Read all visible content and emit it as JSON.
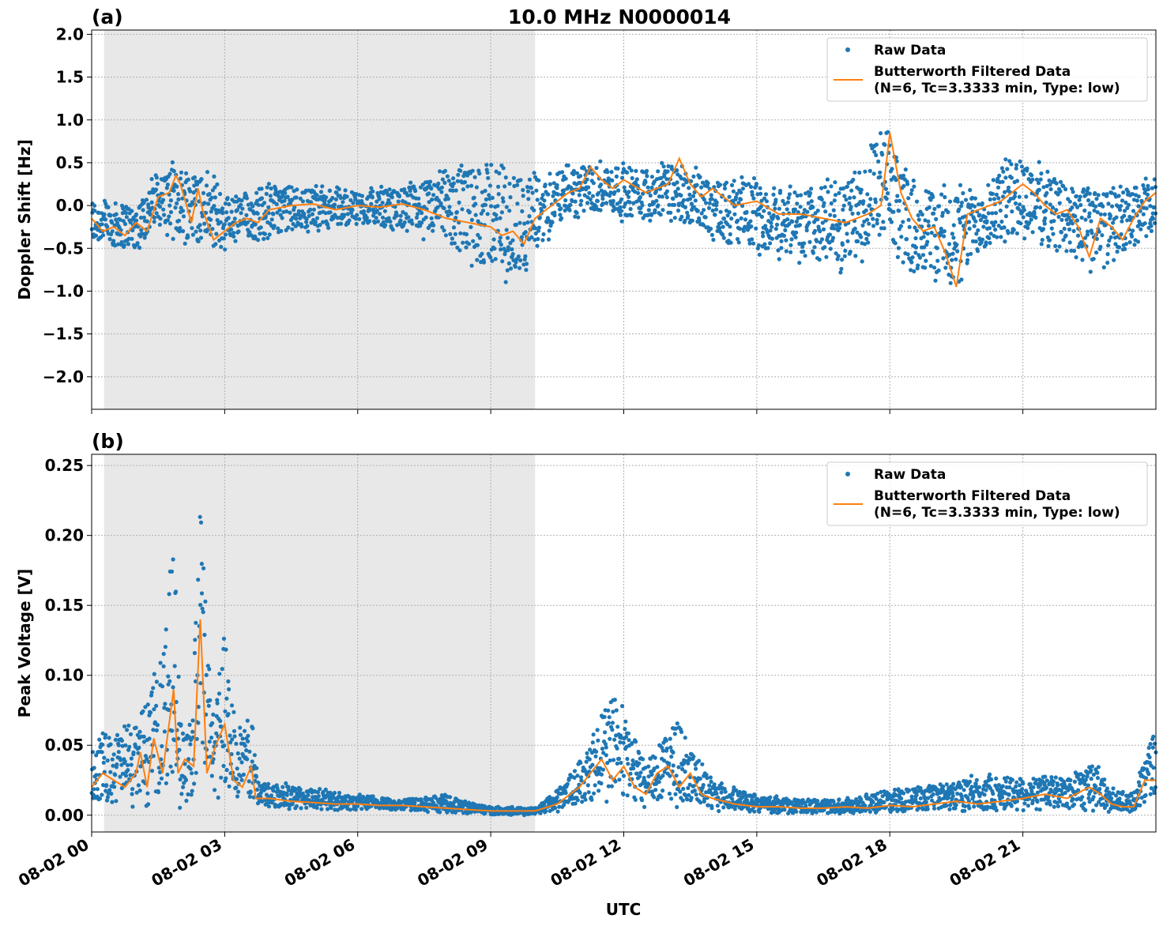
{
  "figure": {
    "title": "10.0 MHz N0000014",
    "xlabel": "UTC",
    "colors": {
      "raw": "#1f77b4",
      "filtered": "#ff7f0e",
      "shade": "#e8e8e8",
      "grid": "#b0b0b0"
    }
  },
  "legend": {
    "raw_label": "Raw Data",
    "filtered_label_line1": "Butterworth Filtered Data",
    "filtered_label_line2": "(N=6, Tc=3.3333 min, Type: low)",
    "placement": "upper right"
  },
  "chart_data": [
    {
      "type": "scatter",
      "panel_label": "(a)",
      "ylabel": "Doppler Shift [Hz]",
      "xlim_hours": [
        0,
        24
      ],
      "ylim": [
        -2.38,
        2.05
      ],
      "yticks": [
        2.0,
        1.5,
        1.0,
        0.5,
        0.0,
        -0.5,
        -1.0,
        -1.5,
        -2.0
      ],
      "ytick_labels": [
        "2.0",
        "1.5",
        "1.0",
        "0.5",
        "0.0",
        "−0.5",
        "−1.0",
        "−1.5",
        "−2.0"
      ],
      "shaded_region_hours": [
        0.28,
        10.0
      ],
      "grid": true,
      "filtered_series": {
        "name": "Butterworth Filtered Data",
        "x_hours": [
          0.0,
          0.25,
          0.5,
          0.75,
          1.0,
          1.25,
          1.5,
          1.75,
          1.9,
          2.0,
          2.25,
          2.4,
          2.5,
          2.75,
          3.0,
          3.25,
          3.5,
          3.75,
          4.0,
          4.5,
          5.0,
          5.5,
          6.0,
          6.5,
          7.0,
          7.5,
          8.0,
          8.5,
          9.0,
          9.25,
          9.5,
          9.75,
          10.0,
          10.25,
          10.5,
          10.75,
          11.0,
          11.25,
          11.5,
          11.75,
          12.0,
          12.5,
          13.0,
          13.25,
          13.5,
          13.75,
          14.0,
          14.5,
          15.0,
          15.5,
          16.0,
          16.5,
          17.0,
          17.5,
          17.8,
          17.9,
          18.0,
          18.25,
          18.5,
          18.75,
          19.0,
          19.25,
          19.5,
          19.75,
          20.0,
          20.5,
          21.0,
          21.25,
          21.5,
          21.75,
          22.0,
          22.25,
          22.5,
          22.75,
          23.0,
          23.25,
          23.5,
          23.75,
          24.0
        ],
        "values": [
          -0.15,
          -0.3,
          -0.25,
          -0.35,
          -0.2,
          -0.3,
          0.1,
          0.15,
          0.35,
          0.25,
          -0.2,
          0.2,
          -0.05,
          -0.4,
          -0.3,
          -0.2,
          -0.15,
          -0.2,
          -0.05,
          0.0,
          0.02,
          -0.05,
          0.0,
          -0.02,
          0.02,
          -0.05,
          -0.15,
          -0.2,
          -0.25,
          -0.35,
          -0.3,
          -0.45,
          -0.15,
          -0.05,
          0.05,
          0.15,
          0.2,
          0.45,
          0.3,
          0.2,
          0.3,
          0.15,
          0.25,
          0.55,
          0.25,
          0.1,
          0.2,
          0.0,
          0.05,
          -0.1,
          -0.1,
          -0.15,
          -0.2,
          -0.1,
          0.0,
          0.4,
          0.85,
          0.15,
          -0.15,
          -0.3,
          -0.25,
          -0.55,
          -0.95,
          -0.1,
          -0.05,
          0.05,
          0.25,
          0.15,
          0.0,
          -0.1,
          -0.05,
          -0.25,
          -0.6,
          -0.15,
          -0.25,
          -0.4,
          -0.15,
          0.05,
          0.15
        ]
      },
      "raw_envelope": {
        "name": "Raw Data",
        "x_hours": [
          0.0,
          1.0,
          1.5,
          2.0,
          2.5,
          3.0,
          3.5,
          4.0,
          5.0,
          6.0,
          7.0,
          8.0,
          8.5,
          9.0,
          9.5,
          10.0,
          10.5,
          11.0,
          11.5,
          12.0,
          13.0,
          14.0,
          15.0,
          16.0,
          17.0,
          17.9,
          18.5,
          19.0,
          19.5,
          20.0,
          20.5,
          21.0,
          21.5,
          22.0,
          22.5,
          23.0,
          23.5,
          24.0
        ],
        "upper": [
          0.15,
          0.05,
          0.45,
          0.55,
          0.5,
          0.2,
          0.2,
          0.3,
          0.25,
          0.2,
          0.25,
          0.45,
          0.55,
          0.65,
          0.5,
          0.45,
          0.45,
          0.5,
          0.55,
          0.5,
          0.55,
          0.4,
          0.35,
          0.3,
          0.35,
          0.95,
          0.35,
          0.3,
          0.3,
          0.3,
          0.55,
          0.65,
          0.5,
          0.35,
          0.3,
          0.25,
          0.3,
          0.35
        ],
        "lower": [
          -0.5,
          -0.55,
          -0.3,
          -0.45,
          -0.55,
          -0.6,
          -0.45,
          -0.4,
          -0.3,
          -0.25,
          -0.3,
          -0.5,
          -0.75,
          -0.85,
          -1.0,
          -0.7,
          -0.25,
          -0.15,
          -0.1,
          -0.2,
          -0.2,
          -0.4,
          -0.6,
          -0.7,
          -0.8,
          -0.5,
          -0.8,
          -0.9,
          -1.1,
          -0.6,
          -0.5,
          -0.4,
          -0.5,
          -0.65,
          -0.8,
          -0.7,
          -0.55,
          -0.4
        ]
      }
    },
    {
      "type": "scatter",
      "panel_label": "(b)",
      "ylabel": "Peak Voltage [V]",
      "xlim_hours": [
        0,
        24
      ],
      "ylim": [
        -0.012,
        0.258
      ],
      "yticks": [
        0.25,
        0.2,
        0.15,
        0.1,
        0.05,
        0.0
      ],
      "ytick_labels": [
        "0.25",
        "0.20",
        "0.15",
        "0.10",
        "0.05",
        "0.00"
      ],
      "xticks_hours": [
        0,
        3,
        6,
        9,
        12,
        15,
        18,
        21
      ],
      "xtick_labels": [
        "08-02 00",
        "08-02 03",
        "08-02 06",
        "08-02 09",
        "08-02 12",
        "08-02 15",
        "08-02 18",
        "08-02 21"
      ],
      "shaded_region_hours": [
        0.28,
        10.0
      ],
      "grid": true,
      "filtered_series": {
        "name": "Butterworth Filtered Data",
        "x_hours": [
          0.0,
          0.25,
          0.5,
          0.75,
          1.0,
          1.1,
          1.25,
          1.4,
          1.6,
          1.85,
          1.95,
          2.1,
          2.3,
          2.45,
          2.6,
          2.8,
          3.0,
          3.2,
          3.4,
          3.6,
          3.7,
          4.0,
          4.5,
          5.0,
          5.5,
          6.0,
          6.5,
          7.0,
          7.5,
          8.0,
          8.5,
          9.0,
          9.5,
          10.0,
          10.5,
          11.0,
          11.25,
          11.5,
          11.75,
          12.0,
          12.25,
          12.5,
          12.75,
          13.0,
          13.25,
          13.5,
          13.75,
          14.0,
          14.5,
          15.0,
          15.5,
          16.0,
          16.5,
          17.0,
          17.5,
          18.0,
          18.5,
          19.0,
          19.5,
          20.0,
          20.5,
          21.0,
          21.5,
          22.0,
          22.5,
          22.75,
          23.0,
          23.25,
          23.5,
          23.75,
          24.0
        ],
        "values": [
          0.02,
          0.03,
          0.025,
          0.02,
          0.03,
          0.045,
          0.02,
          0.055,
          0.03,
          0.09,
          0.03,
          0.04,
          0.035,
          0.14,
          0.03,
          0.05,
          0.065,
          0.025,
          0.02,
          0.035,
          0.012,
          0.012,
          0.01,
          0.009,
          0.008,
          0.008,
          0.007,
          0.007,
          0.006,
          0.005,
          0.004,
          0.003,
          0.003,
          0.003,
          0.008,
          0.02,
          0.03,
          0.04,
          0.025,
          0.035,
          0.02,
          0.015,
          0.03,
          0.035,
          0.02,
          0.03,
          0.015,
          0.012,
          0.008,
          0.006,
          0.006,
          0.005,
          0.005,
          0.006,
          0.005,
          0.007,
          0.006,
          0.008,
          0.01,
          0.008,
          0.01,
          0.012,
          0.015,
          0.012,
          0.02,
          0.015,
          0.008,
          0.006,
          0.006,
          0.025,
          0.025
        ]
      },
      "raw_envelope": {
        "name": "Raw Data",
        "x_hours": [
          0.0,
          0.5,
          1.0,
          1.5,
          1.85,
          2.0,
          2.25,
          2.45,
          2.7,
          3.0,
          3.25,
          3.6,
          3.75,
          4.0,
          5.0,
          6.0,
          7.0,
          8.0,
          9.0,
          10.0,
          10.5,
          11.0,
          11.5,
          11.75,
          12.0,
          12.5,
          13.0,
          13.25,
          13.5,
          14.0,
          15.0,
          16.0,
          17.0,
          18.0,
          19.0,
          20.0,
          21.0,
          22.0,
          22.5,
          23.0,
          23.5,
          23.75,
          24.0
        ],
        "upper": [
          0.06,
          0.065,
          0.07,
          0.11,
          0.21,
          0.08,
          0.07,
          0.245,
          0.08,
          0.15,
          0.06,
          0.08,
          0.03,
          0.025,
          0.02,
          0.015,
          0.012,
          0.015,
          0.006,
          0.006,
          0.02,
          0.04,
          0.08,
          0.1,
          0.08,
          0.04,
          0.065,
          0.075,
          0.05,
          0.025,
          0.015,
          0.012,
          0.012,
          0.02,
          0.022,
          0.03,
          0.03,
          0.03,
          0.045,
          0.02,
          0.015,
          0.05,
          0.065
        ],
        "lower": [
          0.005,
          0.008,
          0.005,
          0.005,
          0.008,
          0.005,
          0.008,
          0.01,
          0.008,
          0.008,
          0.006,
          0.005,
          0.005,
          0.004,
          0.004,
          0.003,
          0.003,
          0.002,
          0.0,
          0.0,
          0.002,
          0.005,
          0.008,
          0.008,
          0.006,
          0.004,
          0.005,
          0.005,
          0.004,
          0.003,
          0.002,
          0.001,
          0.001,
          0.002,
          0.002,
          0.002,
          0.003,
          0.003,
          0.003,
          0.002,
          0.002,
          0.005,
          0.01
        ]
      }
    }
  ]
}
